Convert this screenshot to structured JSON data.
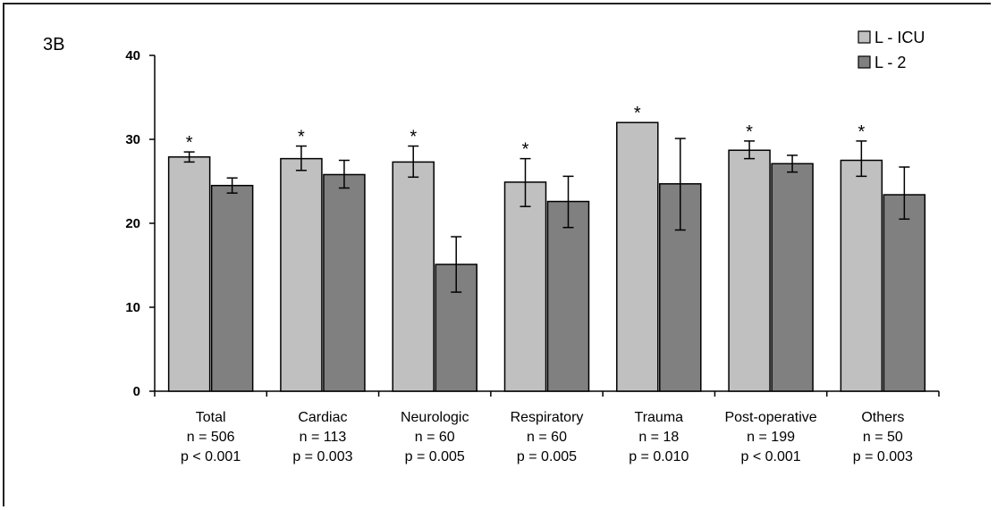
{
  "panel_label": "3B",
  "chart_data": {
    "type": "bar",
    "title": "",
    "xlabel": "",
    "ylabel": "",
    "ylim": [
      0,
      40
    ],
    "yticks": [
      "0",
      "10",
      "20",
      "30",
      "40"
    ],
    "grid": false,
    "legend_position": "top-right",
    "categories": [
      [
        "Total",
        "n = 506",
        "p < 0.001"
      ],
      [
        "Cardiac",
        "n = 113",
        "p = 0.003"
      ],
      [
        "Neurologic",
        "n = 60",
        "p = 0.005"
      ],
      [
        "Respiratory",
        "n = 60",
        "p = 0.005"
      ],
      [
        "Trauma",
        "n = 18",
        "p = 0.010"
      ],
      [
        "Post-operative",
        "n = 199",
        "p < 0.001"
      ],
      [
        "Others",
        "n = 50",
        "p = 0.003"
      ]
    ],
    "series": [
      {
        "name": "L - ICU",
        "color": "#c0c0c0",
        "values": [
          27.9,
          27.7,
          27.3,
          24.9,
          32.0,
          28.7,
          27.5
        ],
        "error_low": [
          27.3,
          26.3,
          25.5,
          22.0,
          32.0,
          27.7,
          25.6
        ],
        "error_high": [
          28.5,
          29.2,
          29.2,
          27.7,
          32.0,
          29.8,
          29.8
        ]
      },
      {
        "name": "L - 2",
        "color": "#808080",
        "values": [
          24.5,
          25.8,
          15.1,
          22.6,
          24.7,
          27.1,
          23.4
        ],
        "error_low": [
          23.6,
          24.2,
          11.8,
          19.5,
          19.2,
          26.1,
          20.5
        ],
        "error_high": [
          25.4,
          27.5,
          18.4,
          25.6,
          30.1,
          28.1,
          26.7
        ]
      }
    ],
    "annotations": [
      "*",
      "*",
      "*",
      "*",
      "*",
      "*",
      "*"
    ]
  }
}
